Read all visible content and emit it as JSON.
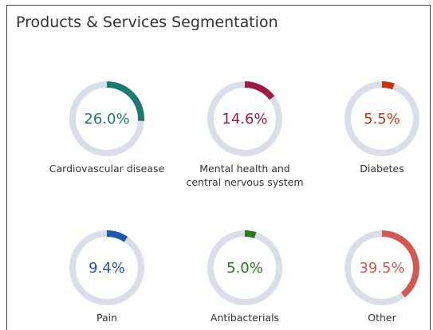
{
  "chart_data": {
    "type": "donut",
    "title": "Products & Services Segmentation",
    "categories": [
      "Cardiovascular disease",
      "Mental health and central nervous system",
      "Diabetes",
      "Pain",
      "Antibacterials",
      "Other"
    ],
    "values": [
      26.0,
      14.6,
      5.5,
      9.4,
      5.0,
      39.5
    ],
    "value_labels": [
      "26.0%",
      "14.6%",
      "5.5%",
      "9.4%",
      "5.0%",
      "39.5%"
    ],
    "colors": [
      "#1b7b73",
      "#9c1c44",
      "#c2380d",
      "#1f58a8",
      "#2a7a1c",
      "#d35852"
    ],
    "track_color": "#d9deea"
  }
}
